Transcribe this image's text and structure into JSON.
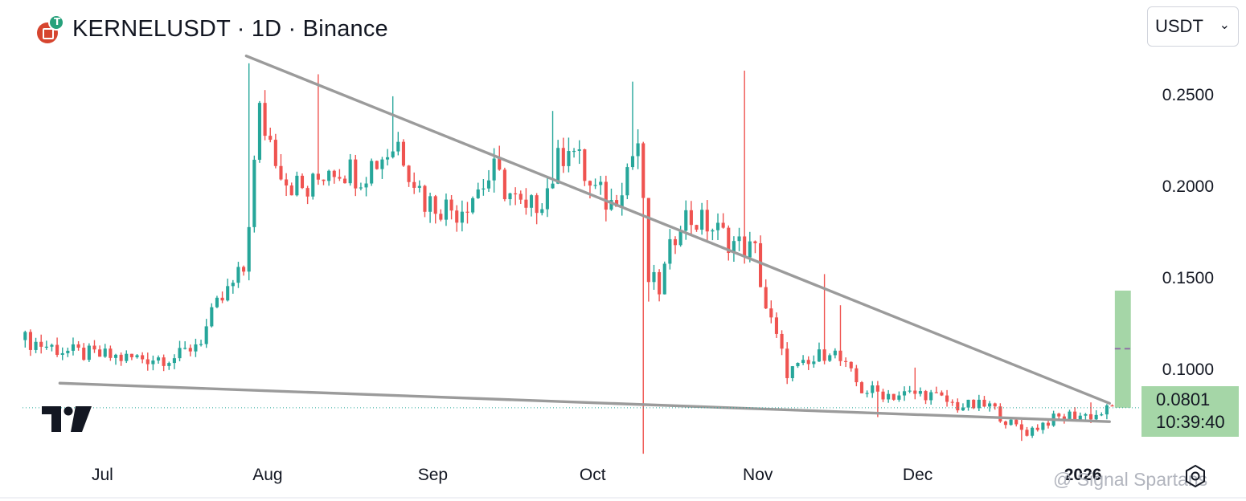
{
  "header": {
    "title": "KERNELUSDT · 1D · Binance",
    "base_icon": "kernel-coin-icon",
    "quote_icon": "tether-icon"
  },
  "currency_select": {
    "value": "USDT",
    "icon": "chevron-down-icon"
  },
  "price_label": {
    "price": "0.0801",
    "countdown": "10:39:40"
  },
  "watermark": "@ Signal Spartans",
  "colors": {
    "up": "#26a69a",
    "down": "#ef5350",
    "trendline": "#9b9b9b",
    "target_box": "#a5d6a7",
    "target_mid": "#8e6aa6"
  },
  "chart_data": {
    "type": "candlestick",
    "symbol": "KERNELUSDT",
    "interval": "1D",
    "exchange": "Binance",
    "x_tick_labels": [
      "Jul",
      "Aug",
      "Sep",
      "Oct",
      "Nov",
      "Dec",
      "2026"
    ],
    "x_tick_dates": [
      "2025-07-01",
      "2025-08-01",
      "2025-09-01",
      "2025-10-01",
      "2025-11-01",
      "2025-12-01",
      "2026-01-01"
    ],
    "y_tick_labels": [
      "0.2500",
      "0.2000",
      "0.1500",
      "0.1000"
    ],
    "y_ticks": [
      0.25,
      0.2,
      0.15,
      0.1
    ],
    "ylim": [
      0.052,
      0.285
    ],
    "xlim": [
      "2025-06-16",
      "2026-01-12"
    ],
    "last_price": 0.0801,
    "grid": false,
    "anchors": [
      [
        "2025-06-16",
        0.117
      ],
      [
        "2025-06-25",
        0.11
      ],
      [
        "2025-07-05",
        0.107
      ],
      [
        "2025-07-15",
        0.108
      ],
      [
        "2025-07-19",
        0.118
      ],
      [
        "2025-07-22",
        0.135
      ],
      [
        "2025-07-27",
        0.155
      ],
      [
        "2025-07-30",
        0.24
      ],
      [
        "2025-08-04",
        0.205
      ],
      [
        "2025-08-08",
        0.197
      ],
      [
        "2025-08-12",
        0.213
      ],
      [
        "2025-08-18",
        0.208
      ],
      [
        "2025-08-25",
        0.225
      ],
      [
        "2025-08-30",
        0.193
      ],
      [
        "2025-09-05",
        0.188
      ],
      [
        "2025-09-12",
        0.208
      ],
      [
        "2025-09-18",
        0.185
      ],
      [
        "2025-09-22",
        0.2
      ],
      [
        "2025-09-26",
        0.227
      ],
      [
        "2025-09-30",
        0.2
      ],
      [
        "2025-10-04",
        0.191
      ],
      [
        "2025-10-09",
        0.225
      ],
      [
        "2025-10-11",
        0.15
      ],
      [
        "2025-10-13",
        0.145
      ],
      [
        "2025-10-17",
        0.185
      ],
      [
        "2025-10-22",
        0.18
      ],
      [
        "2025-10-27",
        0.17
      ],
      [
        "2025-10-31",
        0.165
      ],
      [
        "2025-11-02",
        0.135
      ],
      [
        "2025-11-06",
        0.1
      ],
      [
        "2025-11-10",
        0.103
      ],
      [
        "2025-11-14",
        0.113
      ],
      [
        "2025-11-20",
        0.09
      ],
      [
        "2025-11-26",
        0.087
      ],
      [
        "2025-12-02",
        0.088
      ],
      [
        "2025-12-08",
        0.081
      ],
      [
        "2025-12-14",
        0.081
      ],
      [
        "2025-12-18",
        0.071
      ],
      [
        "2025-12-21",
        0.067
      ],
      [
        "2025-12-25",
        0.073
      ],
      [
        "2025-12-29",
        0.076
      ],
      [
        "2026-01-03",
        0.076
      ],
      [
        "2026-01-06",
        0.0801
      ]
    ],
    "spike_highs": [
      [
        "2025-07-28",
        0.268
      ],
      [
        "2025-08-10",
        0.262
      ],
      [
        "2025-08-24",
        0.25
      ],
      [
        "2025-09-23",
        0.242
      ],
      [
        "2025-10-08",
        0.258
      ],
      [
        "2025-10-29",
        0.264
      ],
      [
        "2025-11-13",
        0.153
      ],
      [
        "2025-11-16",
        0.136
      ],
      [
        "2025-11-30",
        0.102
      ],
      [
        "2026-01-02",
        0.083
      ]
    ],
    "spike_lows": [
      [
        "2025-10-10",
        0.055
      ],
      [
        "2025-10-11",
        0.138
      ],
      [
        "2025-11-23",
        0.075
      ],
      [
        "2025-12-20",
        0.062
      ]
    ],
    "trendlines": [
      {
        "from": [
          "2025-07-28",
          0.272
        ],
        "to": [
          "2026-01-06",
          0.0825
        ]
      },
      {
        "from": [
          "2025-06-23",
          0.0935
        ],
        "to": [
          "2026-01-06",
          0.0725
        ]
      }
    ],
    "target_zone": {
      "from_date": "2026-01-07",
      "to_date": "2026-01-10",
      "low": 0.0801,
      "high": 0.144,
      "mid": 0.1123
    }
  }
}
